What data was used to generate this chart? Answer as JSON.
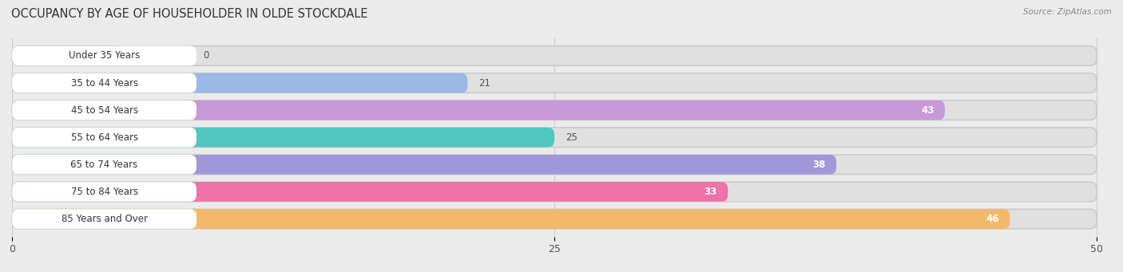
{
  "title": "OCCUPANCY BY AGE OF HOUSEHOLDER IN OLDE STOCKDALE",
  "source": "Source: ZipAtlas.com",
  "categories": [
    "Under 35 Years",
    "35 to 44 Years",
    "45 to 54 Years",
    "55 to 64 Years",
    "65 to 74 Years",
    "75 to 84 Years",
    "85 Years and Over"
  ],
  "values": [
    0,
    21,
    43,
    25,
    38,
    33,
    46
  ],
  "bar_colors": [
    "#f2a0a8",
    "#9ab8e8",
    "#c898d8",
    "#50c8c0",
    "#a098d8",
    "#f070a8",
    "#f4b86a"
  ],
  "xlim_data": 50,
  "xticks": [
    0,
    25,
    50
  ],
  "bg_color": "#ebebeb",
  "bar_bg_color": "#e0e0e0",
  "label_bg_color": "#ffffff",
  "title_fontsize": 10.5,
  "label_fontsize": 8.5,
  "value_fontsize": 8.5,
  "fig_width": 14.06,
  "fig_height": 3.41,
  "dpi": 100
}
